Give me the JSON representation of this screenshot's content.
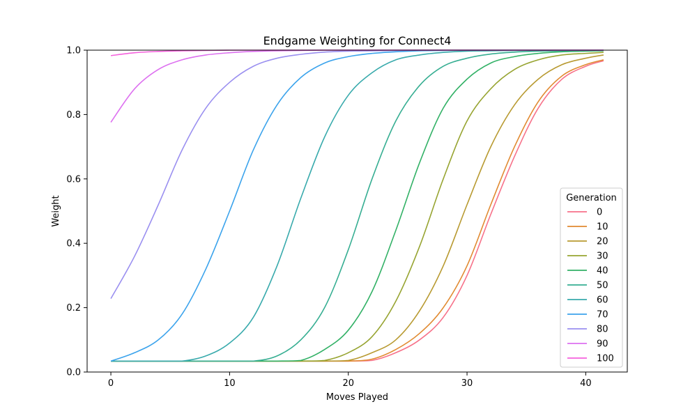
{
  "chart_data": {
    "type": "line",
    "title": "Endgame Weighting for Connect4",
    "xlabel": "Moves Played",
    "ylabel": "Weight",
    "xlim": [
      -2,
      43.5
    ],
    "ylim": [
      0,
      1
    ],
    "xticks": [
      0,
      10,
      20,
      30,
      40
    ],
    "yticks": [
      0.0,
      0.2,
      0.4,
      0.6,
      0.8,
      1.0
    ],
    "xtick_labels": [
      "0",
      "10",
      "20",
      "30",
      "40"
    ],
    "ytick_labels": [
      "0.0",
      "0.2",
      "0.4",
      "0.6",
      "0.8",
      "1.0"
    ],
    "grid": false,
    "legend": {
      "title": "Generation",
      "placement": "center-right"
    },
    "x": [
      0,
      2,
      4,
      6,
      8,
      10,
      12,
      14,
      16,
      18,
      20,
      22,
      24,
      26,
      28,
      30,
      32,
      34,
      36,
      38,
      40,
      41.5
    ],
    "series": [
      {
        "name": "0",
        "color": "#f77189",
        "values": [
          0.034,
          0.034,
          0.034,
          0.034,
          0.034,
          0.034,
          0.034,
          0.034,
          0.034,
          0.034,
          0.034,
          0.036,
          0.06,
          0.1,
          0.17,
          0.3,
          0.49,
          0.67,
          0.82,
          0.91,
          0.95,
          0.967
        ]
      },
      {
        "name": "10",
        "color": "#e18a31",
        "values": [
          0.034,
          0.034,
          0.034,
          0.034,
          0.034,
          0.034,
          0.034,
          0.034,
          0.034,
          0.034,
          0.034,
          0.04,
          0.07,
          0.12,
          0.2,
          0.33,
          0.52,
          0.7,
          0.84,
          0.92,
          0.955,
          0.97
        ]
      },
      {
        "name": "20",
        "color": "#b89a31",
        "values": [
          0.034,
          0.034,
          0.034,
          0.034,
          0.034,
          0.034,
          0.034,
          0.034,
          0.034,
          0.034,
          0.036,
          0.06,
          0.1,
          0.19,
          0.33,
          0.52,
          0.7,
          0.83,
          0.91,
          0.955,
          0.975,
          0.985
        ]
      },
      {
        "name": "30",
        "color": "#97a431",
        "values": [
          0.034,
          0.034,
          0.034,
          0.034,
          0.034,
          0.034,
          0.034,
          0.034,
          0.034,
          0.036,
          0.06,
          0.11,
          0.22,
          0.39,
          0.6,
          0.78,
          0.88,
          0.94,
          0.97,
          0.985,
          0.99,
          0.993
        ]
      },
      {
        "name": "40",
        "color": "#32b166",
        "values": [
          0.034,
          0.034,
          0.034,
          0.034,
          0.034,
          0.034,
          0.034,
          0.034,
          0.036,
          0.07,
          0.13,
          0.25,
          0.44,
          0.65,
          0.82,
          0.91,
          0.96,
          0.98,
          0.99,
          0.995,
          0.997,
          0.998
        ]
      },
      {
        "name": "50",
        "color": "#36ae92",
        "values": [
          0.034,
          0.034,
          0.034,
          0.034,
          0.034,
          0.034,
          0.034,
          0.05,
          0.1,
          0.2,
          0.38,
          0.6,
          0.78,
          0.89,
          0.95,
          0.975,
          0.988,
          0.994,
          0.997,
          0.998,
          0.999,
          1.0
        ]
      },
      {
        "name": "60",
        "color": "#38aaac",
        "values": [
          0.034,
          0.034,
          0.034,
          0.034,
          0.05,
          0.09,
          0.17,
          0.33,
          0.54,
          0.73,
          0.86,
          0.93,
          0.97,
          0.985,
          0.993,
          0.997,
          0.998,
          0.999,
          1.0,
          1.0,
          1.0,
          1.0
        ]
      },
      {
        "name": "70",
        "color": "#3ba3ec",
        "values": [
          0.034,
          0.06,
          0.1,
          0.18,
          0.32,
          0.5,
          0.69,
          0.83,
          0.915,
          0.96,
          0.98,
          0.99,
          0.995,
          0.998,
          0.999,
          1.0,
          1.0,
          1.0,
          1.0,
          1.0,
          1.0,
          1.0
        ]
      },
      {
        "name": "80",
        "color": "#9a8ff0",
        "values": [
          0.228,
          0.36,
          0.52,
          0.69,
          0.82,
          0.9,
          0.95,
          0.975,
          0.987,
          0.994,
          0.997,
          0.998,
          0.999,
          1.0,
          1.0,
          1.0,
          1.0,
          1.0,
          1.0,
          1.0,
          1.0,
          1.0
        ]
      },
      {
        "name": "90",
        "color": "#dd70f0",
        "values": [
          0.776,
          0.88,
          0.94,
          0.97,
          0.985,
          0.992,
          0.996,
          0.998,
          0.999,
          1.0,
          1.0,
          1.0,
          1.0,
          1.0,
          1.0,
          1.0,
          1.0,
          1.0,
          1.0,
          1.0,
          1.0,
          1.0
        ]
      },
      {
        "name": "100",
        "color": "#f561dd",
        "values": [
          0.983,
          0.992,
          0.996,
          0.998,
          0.999,
          1.0,
          1.0,
          1.0,
          1.0,
          1.0,
          1.0,
          1.0,
          1.0,
          1.0,
          1.0,
          1.0,
          1.0,
          1.0,
          1.0,
          1.0,
          1.0,
          1.0
        ]
      }
    ]
  }
}
